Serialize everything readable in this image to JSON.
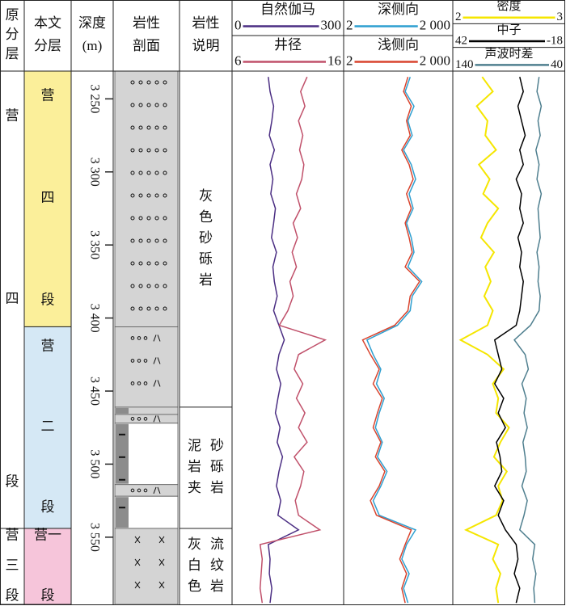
{
  "chart_data": {
    "type": "well-log",
    "headers": {
      "original_layers": [
        "原",
        "分",
        "层"
      ],
      "layers": [
        "本文",
        "分层"
      ],
      "depth": [
        "深度",
        "(m)"
      ],
      "lithology": [
        "岩性",
        "剖面"
      ],
      "description": [
        "岩性",
        "说明"
      ]
    },
    "ylim": [
      3231,
      3596
    ],
    "yticks": [
      {
        "value": 3250,
        "label": "3 250"
      },
      {
        "value": 3300,
        "label": "3 300"
      },
      {
        "value": 3350,
        "label": "3 350"
      },
      {
        "value": 3400,
        "label": "3 400"
      },
      {
        "value": 3450,
        "label": "3 450"
      },
      {
        "value": 3500,
        "label": "3 500"
      },
      {
        "value": 3550,
        "label": "3 550"
      }
    ],
    "depth": [
      3235,
      3245,
      3255,
      3265,
      3275,
      3285,
      3295,
      3305,
      3315,
      3325,
      3335,
      3345,
      3355,
      3365,
      3375,
      3385,
      3395,
      3405,
      3415,
      3425,
      3435,
      3445,
      3455,
      3465,
      3475,
      3485,
      3495,
      3505,
      3515,
      3525,
      3535,
      3545,
      3555,
      3565,
      3575,
      3585,
      3595
    ],
    "original_layers": [
      {
        "top": 3231,
        "base": 3544,
        "label": [
          "营",
          "四",
          "段"
        ]
      },
      {
        "top": 3544,
        "base": 3596,
        "label": [
          "营",
          "三",
          "段"
        ]
      }
    ],
    "layers": [
      {
        "top": 3231,
        "base": 3406,
        "color": "#fbef9a",
        "label": [
          "营",
          "四",
          "段"
        ]
      },
      {
        "top": 3406,
        "base": 3544,
        "color": "#d5e8f5",
        "label": [
          "营",
          "二",
          "段"
        ]
      },
      {
        "top": 3544,
        "base": 3596,
        "color": "#f6c5da",
        "label": [
          "营一",
          "段"
        ]
      }
    ],
    "lithology": [
      {
        "top": 3231,
        "base": 3406,
        "color": "#d4d4d4",
        "pattern": "gravel"
      },
      {
        "top": 3406,
        "base": 3461,
        "color": "#d4d4d4",
        "pattern": "pebbly-sand"
      },
      {
        "top": 3461,
        "base": 3466,
        "color": "#d4d4d4",
        "pattern": "mud"
      },
      {
        "top": 3466,
        "base": 3472,
        "color": "#d4d4d4",
        "pattern": "pebbly-sand"
      },
      {
        "top": 3472,
        "base": 3514,
        "color": "#ffffff",
        "pattern": "mud"
      },
      {
        "top": 3514,
        "base": 3522,
        "color": "#d4d4d4",
        "pattern": "pebbly-sand"
      },
      {
        "top": 3522,
        "base": 3544,
        "color": "#ffffff",
        "pattern": "mud"
      },
      {
        "top": 3544,
        "base": 3596,
        "color": "#d4d4d4",
        "pattern": "flow"
      }
    ],
    "descriptions": [
      {
        "top": 3231,
        "base": 3461,
        "columns": [
          "灰色砂砾岩"
        ]
      },
      {
        "top": 3461,
        "base": 3544,
        "columns": [
          "泥岩夹",
          "砂砾岩"
        ]
      },
      {
        "top": 3544,
        "base": 3596,
        "columns": [
          "灰白色",
          "流纹岩"
        ]
      }
    ],
    "tracks": [
      {
        "log": false,
        "series": [
          {
            "name": "自然伽马",
            "color": "#4b2e83",
            "xlim": [
              0,
              300
            ],
            "values": [
              95,
              100,
              110,
              105,
              98,
              112,
              100,
              108,
              102,
              115,
              110,
              104,
              118,
              108,
              112,
              120,
              110,
              125,
              140,
              125,
              118,
              130,
              122,
              115,
              128,
              120,
              135,
              125,
              118,
              130,
              122,
              180,
              95,
              100,
              98,
              105,
              100
            ]
          },
          {
            "name": "井径",
            "color": "#c0506a",
            "xlim": [
              6,
              16
            ],
            "values": [
              12.8,
              12.2,
              12.6,
              12.0,
              12.4,
              12.1,
              12.5,
              12.3,
              11.8,
              12.2,
              11.5,
              11.9,
              11.4,
              11.8,
              11.2,
              11.5,
              11.0,
              10.2,
              14.5,
              12.0,
              11.6,
              12.4,
              11.8,
              12.6,
              12.0,
              12.8,
              11.6,
              12.5,
              12.2,
              11.7,
              12.0,
              14.0,
              8.4,
              8.6,
              8.5,
              8.4,
              8.6
            ]
          }
        ]
      },
      {
        "log": true,
        "series": [
          {
            "name": "深侧向",
            "color": "#2e9fd0",
            "xlim": [
              2,
              {
                "value": 2000,
                "label": "2 000"
              }
            ],
            "values": [
              140,
              100,
              180,
              120,
              160,
              90,
              150,
              200,
              130,
              170,
              110,
              150,
              180,
              120,
              300,
              160,
              140,
              60,
              8,
              12,
              20,
              15,
              25,
              18,
              14,
              22,
              16,
              30,
              20,
              12,
              18,
              200,
              110,
              80,
              130,
              90,
              120
            ]
          },
          {
            "name": "浅侧向",
            "color": "#d9442e",
            "xlim": [
              2,
              {
                "value": 2000,
                "label": "2 000"
              }
            ],
            "values": [
              120,
              90,
              150,
              110,
              140,
              80,
              130,
              170,
              110,
              150,
              100,
              130,
              160,
              100,
              260,
              140,
              120,
              50,
              6,
              10,
              18,
              12,
              22,
              16,
              12,
              20,
              14,
              26,
              18,
              10,
              15,
              150,
              100,
              70,
              110,
              80,
              100
            ]
          }
        ]
      },
      {
        "log": false,
        "series": [
          {
            "name": "密度",
            "color": "#f5e600",
            "xlim": [
              2,
              3
            ],
            "values": [
              2.25,
              2.35,
              2.2,
              2.3,
              2.28,
              2.38,
              2.22,
              2.32,
              2.26,
              2.4,
              2.3,
              2.24,
              2.36,
              2.28,
              2.33,
              2.27,
              2.35,
              2.3,
              2.05,
              2.3,
              2.45,
              2.35,
              2.4,
              2.38,
              2.5,
              2.42,
              2.36,
              2.48,
              2.4,
              2.44,
              2.38,
              2.1,
              2.4,
              2.35,
              2.42,
              2.38,
              2.4
            ]
          },
          {
            "name": "中子",
            "color": "#000000",
            "xlim": [
              42,
              -18
            ],
            "values": [
              6,
              4,
              7,
              5,
              3,
              6,
              4,
              8,
              5,
              6,
              4,
              7,
              5,
              6,
              4,
              5,
              6,
              8,
              20,
              18,
              16,
              20,
              15,
              18,
              14,
              19,
              17,
              16,
              20,
              15,
              18,
              14,
              8,
              7,
              9,
              6,
              8
            ]
          },
          {
            "name": "声波时差",
            "color": "#4f7f8f",
            "xlim": [
              140,
              40
            ],
            "values": [
              62,
              64,
              60,
              63,
              61,
              65,
              62,
              64,
              60,
              63,
              62,
              61,
              64,
              62,
              63,
              61,
              62,
              70,
              85,
              75,
              72,
              78,
              74,
              76,
              73,
              77,
              75,
              74,
              78,
              73,
              76,
              80,
              66,
              68,
              65,
              67,
              66
            ]
          }
        ]
      }
    ]
  }
}
